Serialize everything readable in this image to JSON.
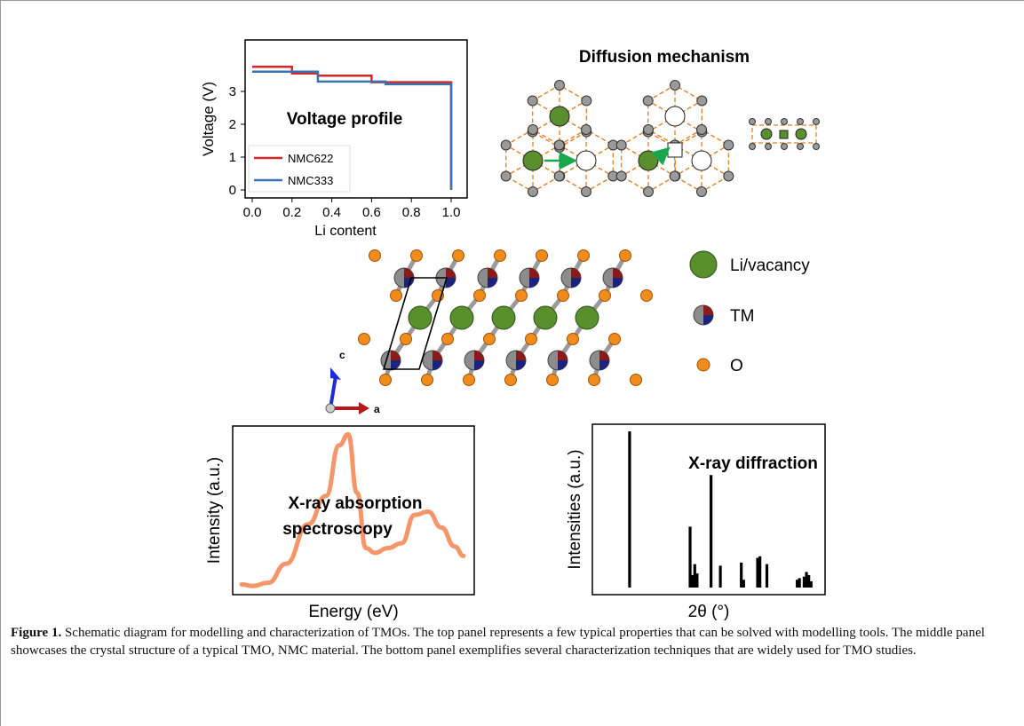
{
  "figure": {
    "voltage": {
      "title": "Voltage profile",
      "ylabel": "Voltage (V)",
      "xlabel": "Li content",
      "xticks": [
        "0.0",
        "0.2",
        "0.4",
        "0.6",
        "0.8",
        "1.0"
      ],
      "yticks": [
        "0",
        "1",
        "2",
        "3"
      ],
      "legend": [
        {
          "name": "NMC622",
          "color": "#d62728"
        },
        {
          "name": "NMC333",
          "color": "#3a74b0"
        }
      ]
    },
    "diffusion": {
      "title": "Diffusion mechanism"
    },
    "structure": {
      "legend": [
        {
          "label": "Li/vacancy",
          "icon": "green-circle-icon"
        },
        {
          "label": "TM",
          "icon": "tm-pie-icon"
        },
        {
          "label": "O",
          "icon": "orange-circle-icon"
        }
      ],
      "axes": {
        "c": "c",
        "a": "a"
      }
    },
    "xas": {
      "title_line1": "X-ray absorption",
      "title_line2": "spectroscopy",
      "ylabel": "Intensity (a.u.)",
      "xlabel": "Energy (eV)",
      "color": "#f4956a"
    },
    "xrd": {
      "title": "X-ray diffraction",
      "ylabel": "Intensities (a.u.)",
      "xlabel": "2θ (°)"
    }
  },
  "chart_data": [
    {
      "type": "line",
      "title": "Voltage profile",
      "xlabel": "Li content",
      "ylabel": "Voltage (V)",
      "xlim": [
        0,
        1
      ],
      "ylim": [
        0,
        3.7
      ],
      "series": [
        {
          "name": "NMC622",
          "x": [
            0.0,
            0.2,
            0.2,
            0.33,
            0.33,
            0.6,
            0.6,
            1.0,
            1.0
          ],
          "y": [
            3.75,
            3.75,
            3.55,
            3.55,
            3.48,
            3.48,
            3.28,
            3.28,
            0.0
          ]
        },
        {
          "name": "NMC333",
          "x": [
            0.0,
            0.33,
            0.33,
            0.67,
            0.67,
            1.0,
            1.0
          ],
          "y": [
            3.6,
            3.6,
            3.3,
            3.3,
            3.22,
            3.22,
            0.0
          ]
        }
      ]
    },
    {
      "type": "line",
      "title": "X-ray absorption spectroscopy",
      "xlabel": "Energy (eV)",
      "ylabel": "Intensity (a.u.)",
      "x": [
        0,
        0.05,
        0.12,
        0.2,
        0.3,
        0.38,
        0.44,
        0.48,
        0.52,
        0.56,
        0.6,
        0.66,
        0.72,
        0.78,
        0.84,
        0.9,
        0.96,
        1.0
      ],
      "y": [
        0.02,
        0.01,
        0.03,
        0.15,
        0.4,
        0.58,
        0.9,
        0.97,
        0.6,
        0.25,
        0.22,
        0.25,
        0.28,
        0.46,
        0.48,
        0.38,
        0.26,
        0.2
      ]
    },
    {
      "type": "bar",
      "title": "X-ray diffraction",
      "xlabel": "2θ (°)",
      "ylabel": "Intensities (a.u.)",
      "x": [
        0.16,
        0.42,
        0.43,
        0.44,
        0.45,
        0.51,
        0.55,
        0.64,
        0.65,
        0.71,
        0.72,
        0.75,
        0.88,
        0.89,
        0.91,
        0.92,
        0.93,
        0.94
      ],
      "y": [
        1.0,
        0.39,
        0.08,
        0.15,
        0.09,
        0.72,
        0.14,
        0.16,
        0.05,
        0.19,
        0.2,
        0.15,
        0.05,
        0.06,
        0.07,
        0.1,
        0.08,
        0.04
      ]
    }
  ],
  "caption": {
    "label": "Figure 1.",
    "text": " Schematic diagram for modelling and characterization of TMOs. The top panel represents a few typical properties that can be solved with modelling tools. The middle panel showcases the crystal structure of a typical TMO, NMC material. The bottom panel exemplifies several characterization techniques that are widely used for TMO studies."
  }
}
